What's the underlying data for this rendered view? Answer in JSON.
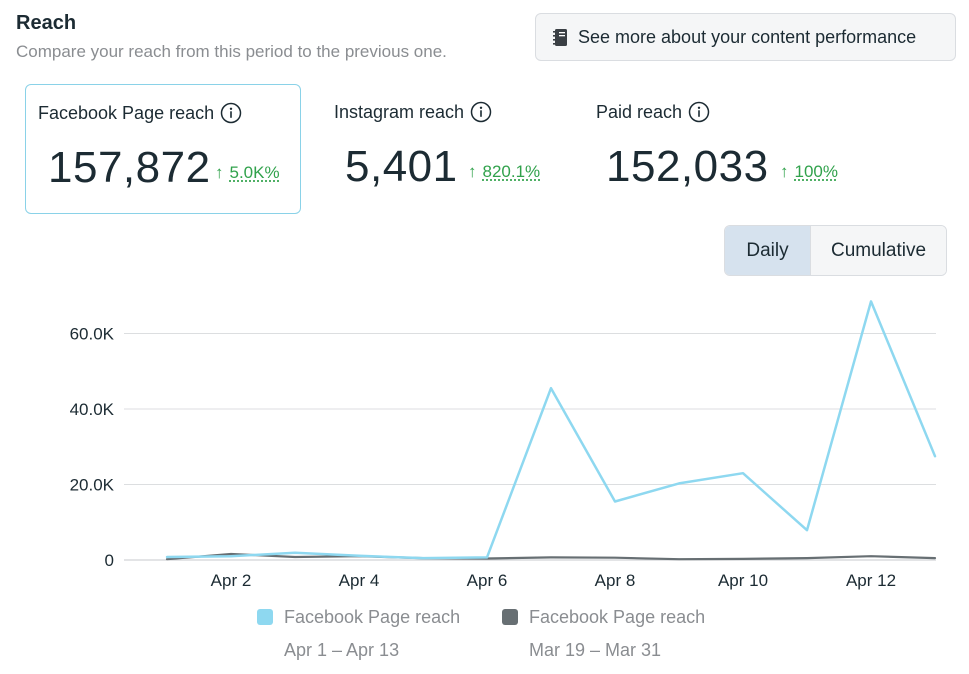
{
  "header": {
    "title": "Reach",
    "subtitle": "Compare your reach from this period to the previous one.",
    "more_button": "See more about your content performance"
  },
  "cards": [
    {
      "label": "Facebook Page reach",
      "value": "157,872",
      "delta": "5.0K%"
    },
    {
      "label": "Instagram reach",
      "value": "5,401",
      "delta": "820.1%"
    },
    {
      "label": "Paid reach",
      "value": "152,033",
      "delta": "100%"
    }
  ],
  "toggle": {
    "daily": "Daily",
    "cumulative": "Cumulative"
  },
  "colors": {
    "current": "#8ed8f0",
    "previous": "#676f73",
    "positive": "#31a24c"
  },
  "chart_data": {
    "type": "line",
    "x": [
      "Apr 1",
      "Apr 2",
      "Apr 3",
      "Apr 4",
      "Apr 5",
      "Apr 6",
      "Apr 7",
      "Apr 8",
      "Apr 9",
      "Apr 10",
      "Apr 11",
      "Apr 12",
      "Apr 13"
    ],
    "xticks": [
      "Apr 2",
      "Apr 4",
      "Apr 6",
      "Apr 8",
      "Apr 10",
      "Apr 12"
    ],
    "yticks": [
      0,
      20000,
      40000,
      60000
    ],
    "ytick_labels": [
      "0",
      "20.0K",
      "40.0K",
      "60.0K"
    ],
    "ylim": [
      0,
      70000
    ],
    "series": [
      {
        "name": "Facebook Page reach",
        "range": "Apr 1 – Apr 13",
        "values": [
          800,
          1000,
          1900,
          1100,
          500,
          700,
          45500,
          15500,
          20300,
          23000,
          7900,
          68500,
          27500
        ]
      },
      {
        "name": "Facebook Page reach",
        "range": "Mar 19 – Mar 31",
        "values": [
          200,
          1600,
          800,
          1000,
          500,
          400,
          700,
          600,
          200,
          300,
          500,
          1000,
          500
        ]
      }
    ],
    "legend_position": "bottom"
  }
}
